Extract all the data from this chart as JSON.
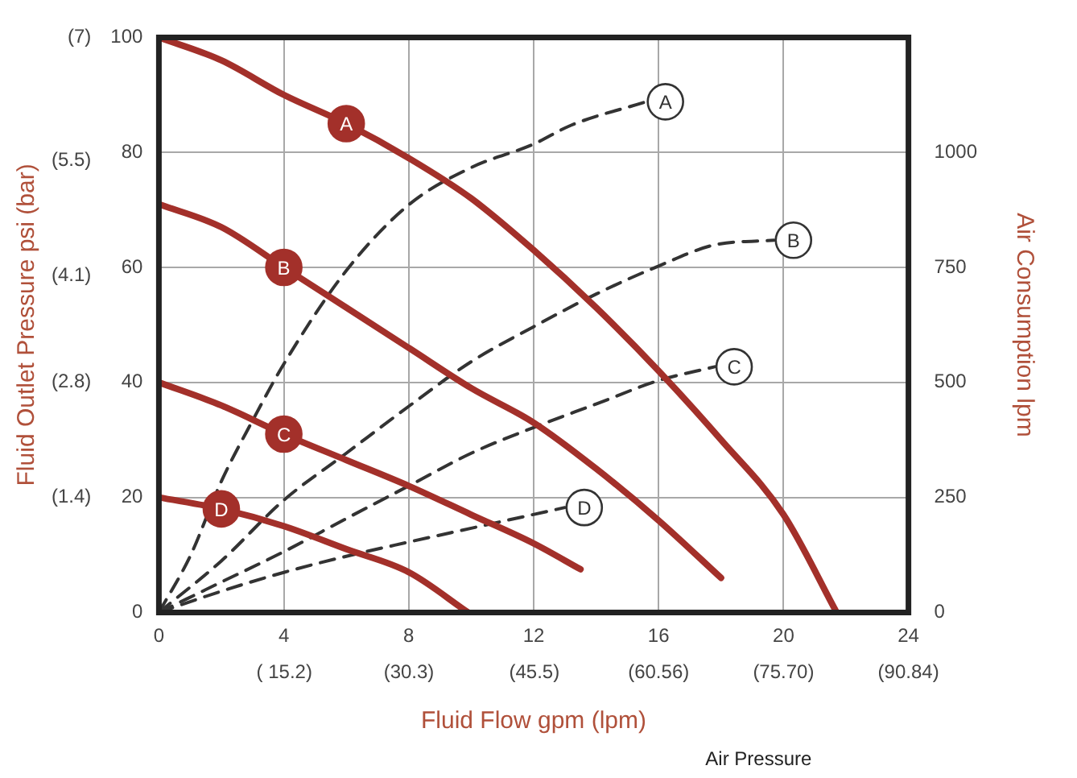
{
  "chart_data": {
    "type": "line",
    "xlabel": "Fluid Flow gpm (lpm)",
    "ylabel": "Fluid Outlet Pressure psi (bar)",
    "y2label": "Air Consumption lpm",
    "annotations": [
      "Air Pressure"
    ],
    "xlim": [
      0,
      24
    ],
    "xticks": [
      0,
      4,
      8,
      12,
      16,
      20,
      24
    ],
    "x2lim": [
      0,
      90.84
    ],
    "x2ticks": [
      {
        "value": 15.2,
        "label": "( 15.2)"
      },
      {
        "value": 30.3,
        "label": "(30.3)"
      },
      {
        "value": 45.5,
        "label": "(45.5)"
      },
      {
        "value": 60.56,
        "label": "(60.56)"
      },
      {
        "value": 75.7,
        "label": "(75.70)"
      },
      {
        "value": 90.84,
        "label": "(90.84)"
      }
    ],
    "ylim": [
      0,
      100
    ],
    "yticks": [
      0,
      20,
      40,
      60,
      80,
      100
    ],
    "y3lim": [
      0,
      7
    ],
    "y3ticks": [
      {
        "value": 1.4,
        "label": "(1.4)"
      },
      {
        "value": 2.8,
        "label": "(2.8)"
      },
      {
        "value": 4.1,
        "label": "(4.1)"
      },
      {
        "value": 5.5,
        "label": "(5.5)"
      },
      {
        "value": 7,
        "label": "(7)"
      }
    ],
    "y2lim": [
      0,
      1250
    ],
    "y2ticks": [
      0,
      250,
      500,
      750,
      1000
    ],
    "grid": true,
    "legend": false,
    "marker": "none",
    "series": [
      {
        "name": "A",
        "color": "#a3302a",
        "line_style": "solid",
        "x": [
          0,
          2,
          4,
          6,
          8,
          10,
          12,
          14,
          16,
          18,
          20,
          21.7
        ],
        "values": [
          100,
          96,
          90,
          85,
          79,
          72,
          63,
          53,
          42,
          30,
          17,
          0
        ]
      },
      {
        "name": "B",
        "color": "#a3302a",
        "line_style": "solid",
        "x": [
          0,
          2,
          4,
          6,
          8,
          10,
          12,
          14,
          16,
          18
        ],
        "values": [
          71,
          67,
          60,
          53,
          46,
          39,
          33,
          25,
          16,
          6
        ]
      },
      {
        "name": "C",
        "color": "#a3302a",
        "line_style": "solid",
        "x": [
          0,
          2,
          4,
          6,
          8,
          10,
          12,
          13.5
        ],
        "values": [
          40,
          36,
          31,
          26.5,
          22,
          17,
          12,
          7.5
        ]
      },
      {
        "name": "D",
        "color": "#a3302a",
        "line_style": "solid",
        "x": [
          0,
          2,
          4,
          6,
          8,
          9.9
        ],
        "values": [
          20,
          18,
          15,
          11,
          7,
          0
        ]
      },
      {
        "name": "A",
        "color": "#333333",
        "line_style": "dashed",
        "axis": "y2",
        "x": [
          0,
          1,
          2,
          3,
          4,
          6,
          8,
          10,
          12,
          13.2,
          15.6
        ],
        "values": [
          0,
          122,
          285,
          417,
          540,
          743,
          886,
          967,
          1018,
          1059,
          1110
        ]
      },
      {
        "name": "B",
        "color": "#333333",
        "line_style": "dashed",
        "axis": "y2",
        "x": [
          0,
          2,
          4,
          6,
          8,
          10,
          12,
          14,
          16,
          17.8,
          19.7
        ],
        "values": [
          0,
          112,
          244,
          346,
          448,
          545,
          621,
          692,
          753,
          799,
          809
        ]
      },
      {
        "name": "C",
        "color": "#333333",
        "line_style": "dashed",
        "axis": "y2",
        "x": [
          0,
          2,
          4,
          6,
          8,
          10,
          12,
          14,
          16,
          17.8
        ],
        "values": [
          0,
          66,
          132,
          204,
          275,
          346,
          402,
          453,
          504,
          534
        ]
      },
      {
        "name": "D",
        "color": "#333333",
        "line_style": "dashed",
        "axis": "y2",
        "x": [
          0,
          2,
          4,
          6,
          8,
          10,
          13
        ],
        "values": [
          0,
          46,
          87,
          122,
          153,
          183,
          228
        ]
      }
    ]
  }
}
